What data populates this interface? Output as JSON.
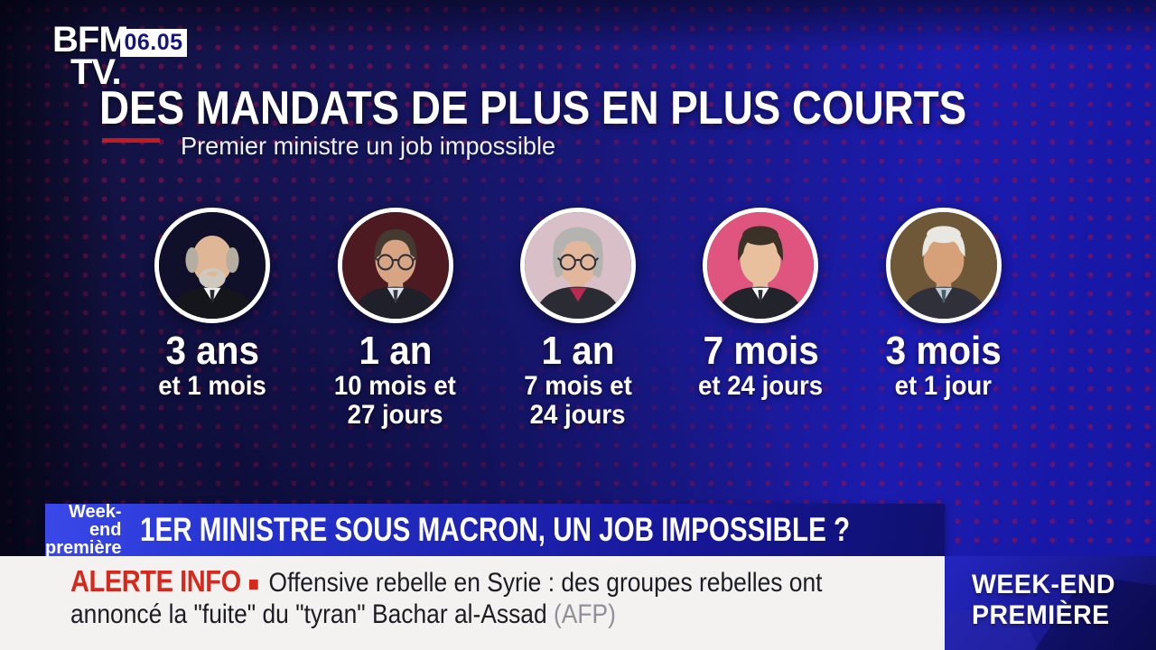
{
  "header": {
    "logo_line1": "BFM",
    "logo_line2": "TV.",
    "time": "06.05"
  },
  "title": {
    "main": "DES MANDATS DE PLUS EN PLUS COURTS",
    "subtitle": "Premier ministre un job impossible"
  },
  "ministers": [
    {
      "duration_line1": "3 ans",
      "duration_line2": "et 1 mois",
      "duration_line3": "",
      "portrait": {
        "style": "bald",
        "bg": "#10102a",
        "skin": "#dfb696",
        "hair": "#b4ada0",
        "beard": "#cfc9bd",
        "glasses": false,
        "suit": "#15151c",
        "shirt": "#f2f2f2",
        "tie": "#26262e"
      }
    },
    {
      "duration_line1": "1 an",
      "duration_line2": "10 mois et",
      "duration_line3": "27 jours",
      "portrait": {
        "style": "receding",
        "bg": "#4d1a22",
        "skin": "#d8a584",
        "hair": "#453a30",
        "beard": null,
        "glasses": true,
        "suit": "#20202a",
        "shirt": "#dfe4ea",
        "tie": "#3a3a46"
      }
    },
    {
      "duration_line1": "1 an",
      "duration_line2": "7 mois et",
      "duration_line3": "24 jours",
      "portrait": {
        "style": "bob",
        "bg": "#d9c0c8",
        "skin": "#e2b79c",
        "hair": "#b5b3af",
        "beard": null,
        "glasses": true,
        "suit": "#2b2b33",
        "shirt": "#b92a4e",
        "tie": null
      }
    },
    {
      "duration_line1": "7 mois",
      "duration_line2": "et 24 jours",
      "duration_line3": "",
      "portrait": {
        "style": "full",
        "bg": "#e0557f",
        "skin": "#e9c09e",
        "hair": "#3c3126",
        "beard": null,
        "glasses": false,
        "suit": "#23232b",
        "shirt": "#ffffff",
        "tie": "#2c2c34"
      }
    },
    {
      "duration_line1": "3 mois",
      "duration_line2": "et 1 jour",
      "duration_line3": "",
      "portrait": {
        "style": "silver",
        "bg": "#6e5838",
        "skin": "#d6a078",
        "hair": "#e9e7e1",
        "beard": null,
        "glasses": false,
        "suit": "#30303a",
        "shirt": "#c3cdd8",
        "tie": "#4a5a6a"
      }
    }
  ],
  "banner": {
    "program_line1": "Week-end",
    "program_line2": "première",
    "headline": "1ER MINISTRE SOUS MACRON, UN JOB IMPOSSIBLE ?"
  },
  "ticker": {
    "alert_label": "ALERTE INFO",
    "text_line1": "Offensive rebelle en Syrie : des groupes rebelles ont",
    "text_line2": "annoncé la \"fuite\" du \"tyran\" Bachar al-Assad",
    "source": "(AFP)"
  },
  "program_box": {
    "line1": "WEEK-END",
    "line2": "PREMIÈRE"
  },
  "colors": {
    "background_blue": "#1b1bae",
    "background_navy": "#12123a",
    "dot_red": "#981048",
    "accent_red": "#c11b20",
    "alert_red": "#d6281c",
    "banner_orange": "#e29a3a",
    "banner_blue": "#2433cf",
    "ticker_background": "#f4f2f0",
    "time_text_blue": "#15157e"
  }
}
